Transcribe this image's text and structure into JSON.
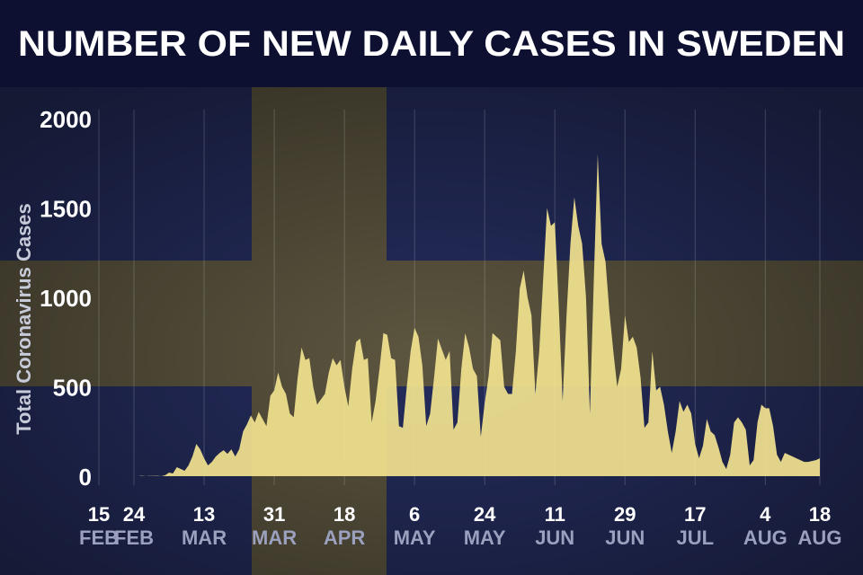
{
  "chart_data": {
    "type": "area",
    "title": "NUMBER OF NEW DAILY CASES IN SWEDEN",
    "y_label": "Total Coronavirus Cases",
    "color": "#f2e38f",
    "ylim": [
      0,
      2000
    ],
    "yticks": [
      0,
      500,
      1000,
      1500,
      2000
    ],
    "grid": true,
    "categories": [
      "15 FEB",
      null,
      null,
      null,
      null,
      null,
      null,
      null,
      null,
      "24 FEB",
      null,
      null,
      null,
      null,
      null,
      null,
      null,
      null,
      null,
      null,
      null,
      null,
      null,
      null,
      null,
      null,
      null,
      "13 MAR",
      null,
      null,
      null,
      null,
      null,
      null,
      null,
      null,
      null,
      null,
      null,
      null,
      null,
      null,
      null,
      null,
      null,
      "31 MAR",
      null,
      null,
      null,
      null,
      null,
      null,
      null,
      null,
      null,
      null,
      null,
      null,
      null,
      null,
      null,
      null,
      null,
      "18 APR",
      null,
      null,
      null,
      null,
      null,
      null,
      null,
      null,
      null,
      null,
      null,
      null,
      null,
      null,
      null,
      null,
      null,
      "6 MAY",
      null,
      null,
      null,
      null,
      null,
      null,
      null,
      null,
      null,
      null,
      null,
      null,
      null,
      null,
      null,
      null,
      null,
      "24 MAY",
      null,
      null,
      null,
      null,
      null,
      null,
      null,
      null,
      null,
      null,
      null,
      null,
      null,
      null,
      null,
      null,
      null,
      "11 JUN",
      null,
      null,
      null,
      null,
      null,
      null,
      null,
      null,
      null,
      null,
      null,
      null,
      null,
      null,
      null,
      null,
      null,
      "29 JUN",
      null,
      null,
      null,
      null,
      null,
      null,
      null,
      null,
      null,
      null,
      null,
      null,
      null,
      null,
      null,
      null,
      null,
      "17 JUL",
      null,
      null,
      null,
      null,
      null,
      null,
      null,
      null,
      null,
      null,
      null,
      null,
      null,
      null,
      null,
      null,
      null,
      "4 AUG",
      null,
      null,
      null,
      null,
      null,
      null,
      null,
      null,
      null,
      null,
      null,
      null,
      null,
      "18 AUG"
    ],
    "values": [
      0,
      0,
      0,
      0,
      0,
      0,
      0,
      0,
      0,
      0,
      0,
      2,
      0,
      1,
      1,
      2,
      0,
      5,
      20,
      15,
      50,
      40,
      30,
      60,
      110,
      180,
      150,
      100,
      60,
      80,
      110,
      130,
      145,
      125,
      150,
      110,
      150,
      250,
      290,
      340,
      300,
      360,
      320,
      280,
      450,
      480,
      580,
      500,
      460,
      350,
      330,
      550,
      720,
      650,
      660,
      500,
      400,
      430,
      460,
      580,
      660,
      620,
      650,
      500,
      390,
      600,
      750,
      770,
      650,
      660,
      300,
      420,
      600,
      800,
      790,
      660,
      650,
      280,
      270,
      500,
      700,
      830,
      780,
      620,
      280,
      350,
      550,
      770,
      710,
      650,
      700,
      260,
      300,
      600,
      800,
      720,
      600,
      560,
      220,
      410,
      560,
      800,
      780,
      760,
      500,
      460,
      460,
      700,
      1050,
      1150,
      1000,
      900,
      460,
      700,
      1100,
      1500,
      1400,
      1420,
      950,
      420,
      900,
      1300,
      1560,
      1400,
      1300,
      1000,
      350,
      1100,
      1800,
      1300,
      1200,
      920,
      700,
      500,
      600,
      900,
      750,
      780,
      720,
      550,
      270,
      300,
      700,
      480,
      500,
      400,
      250,
      130,
      250,
      420,
      360,
      400,
      350,
      180,
      100,
      170,
      320,
      250,
      230,
      160,
      80,
      40,
      120,
      300,
      330,
      300,
      260,
      60,
      90,
      300,
      400,
      380,
      380,
      280,
      120,
      80,
      130,
      120,
      110,
      100,
      90,
      80,
      80,
      85,
      90,
      100
    ]
  }
}
